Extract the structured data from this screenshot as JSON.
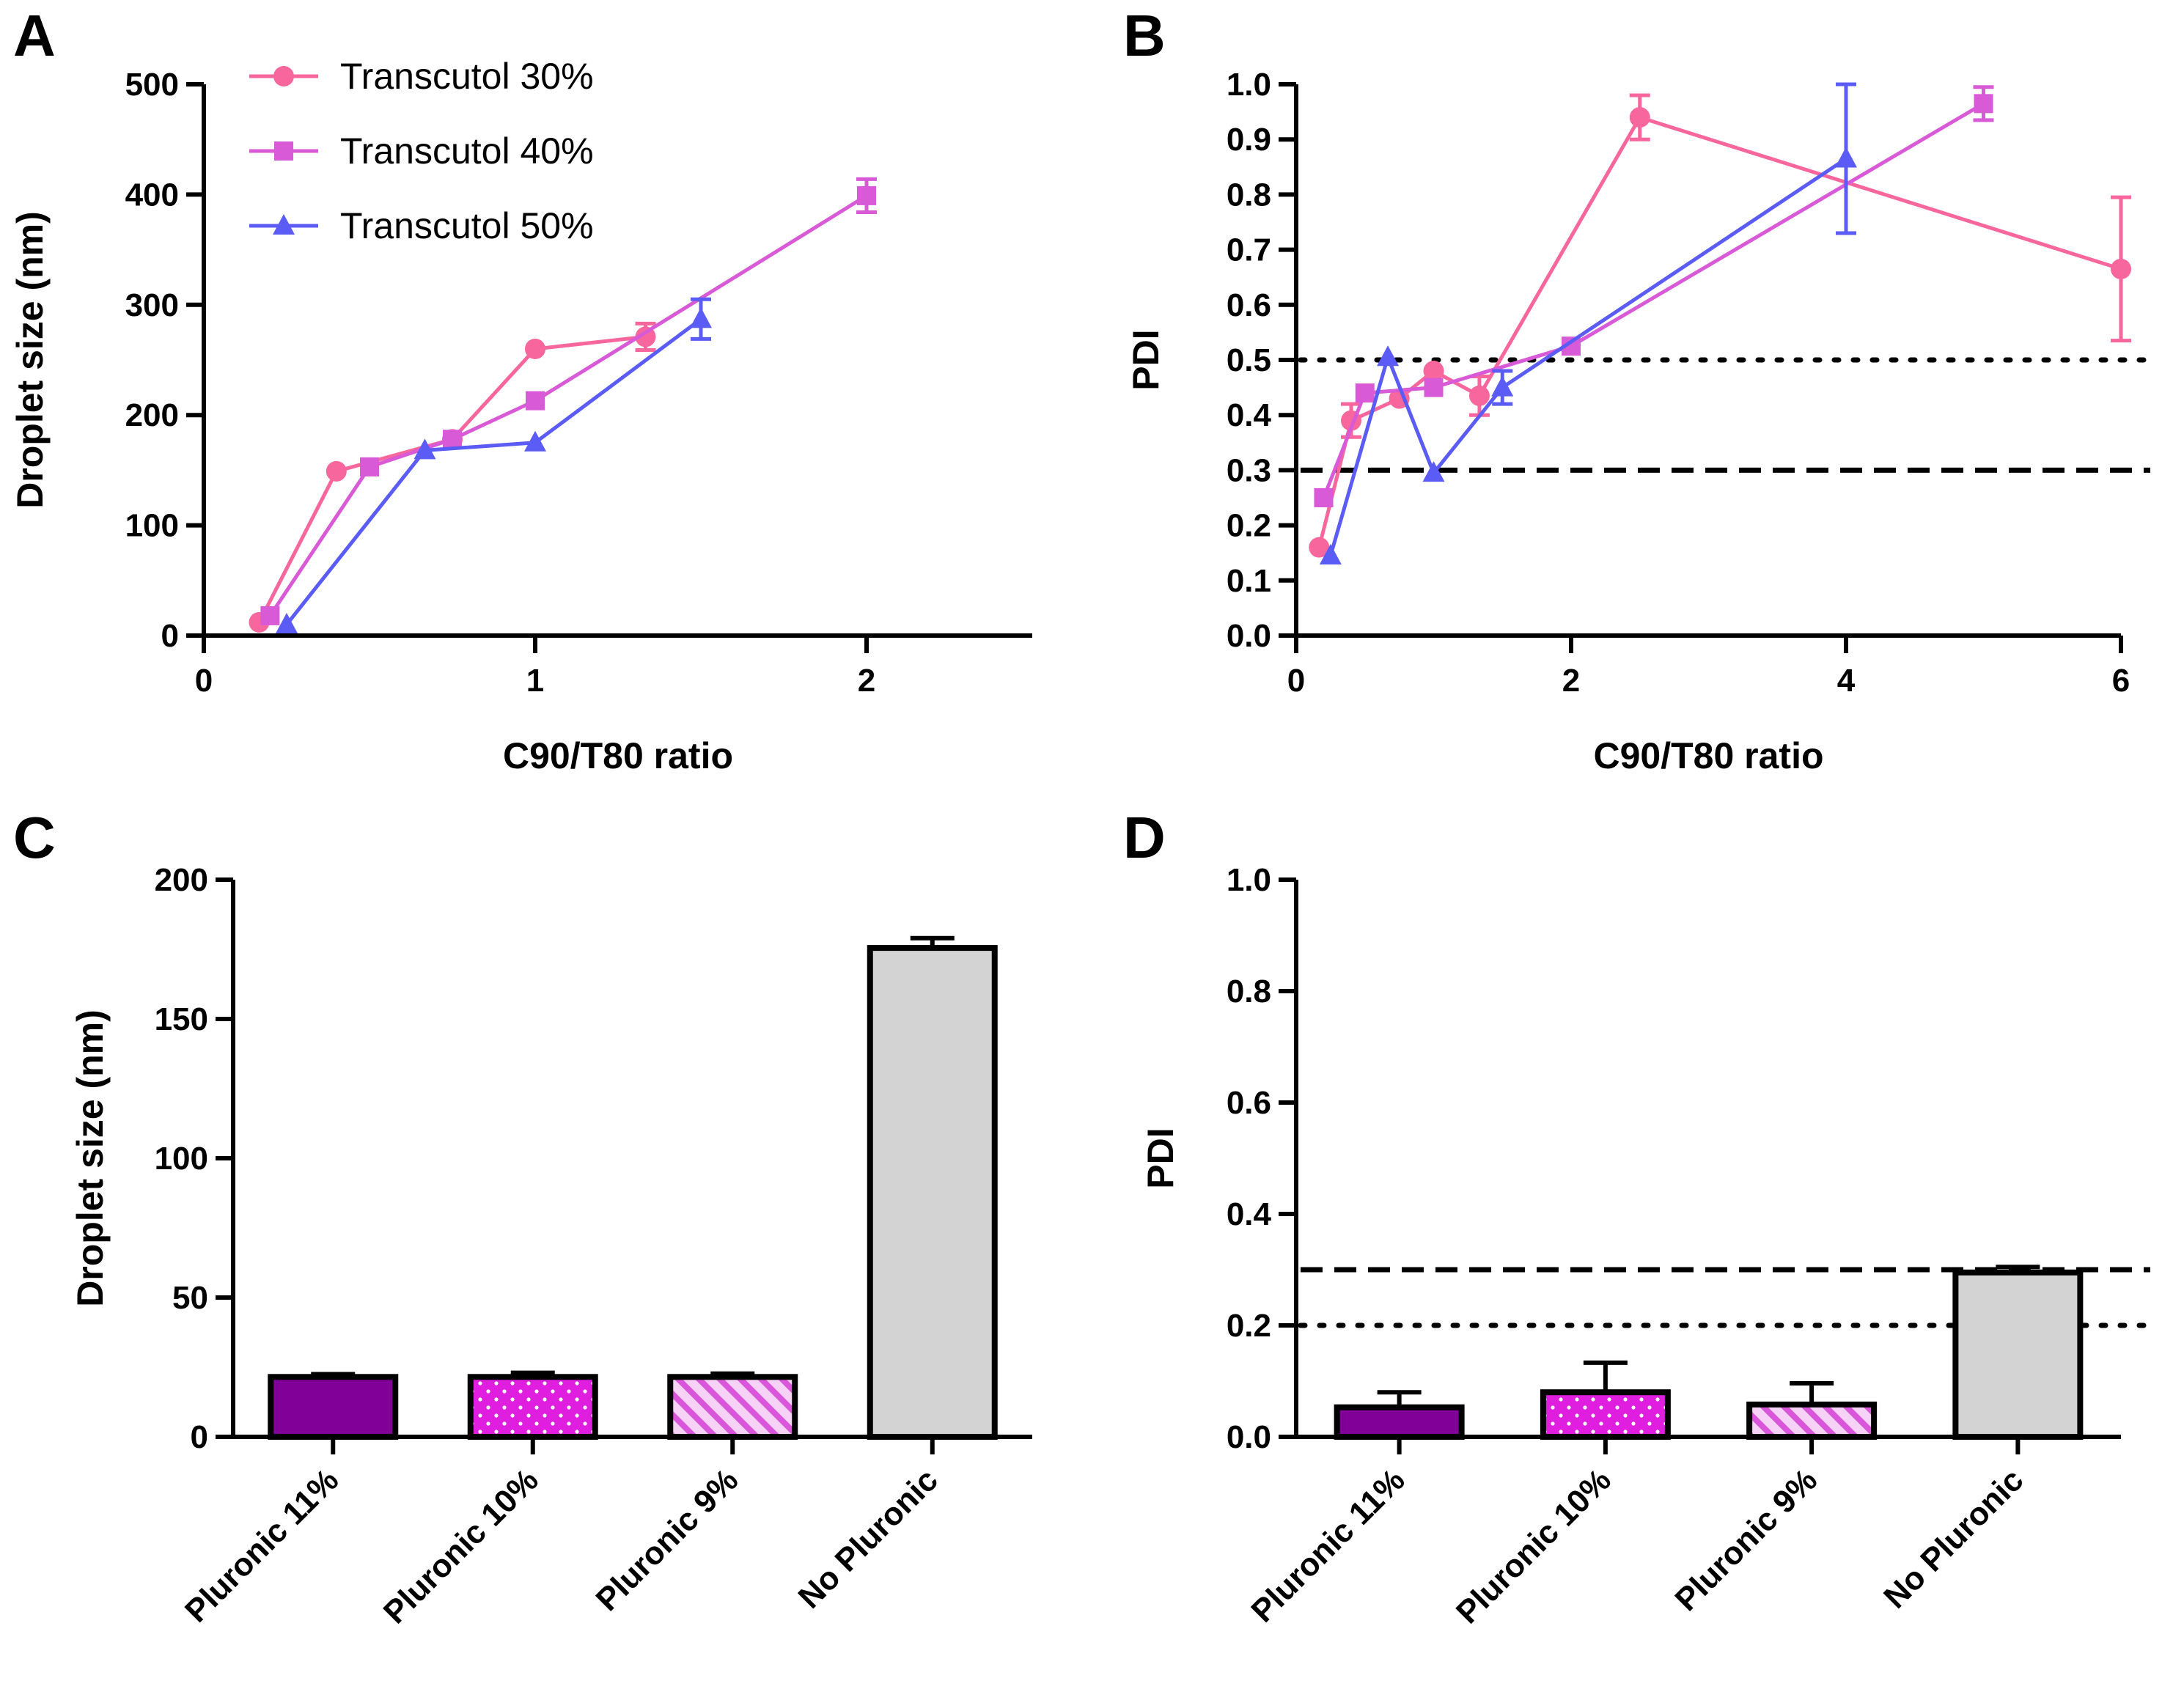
{
  "colors": {
    "t30": "#f7669c",
    "t40": "#d95ad6",
    "t50": "#5b5bf5",
    "p11": "#800098",
    "p10": "#e01ee0",
    "p9": "#e59ae5",
    "none": "#d3d3d3",
    "axis": "#000000"
  },
  "chart_data": [
    {
      "id": "A",
      "panel_label": "A",
      "type": "line",
      "xlabel": "C90/T80 ratio",
      "ylabel": "Droplet size (nm)",
      "xlim": [
        0,
        2.5
      ],
      "ylim": [
        0,
        500
      ],
      "xticks": [
        0,
        1,
        2
      ],
      "xtick_labels": [
        "0",
        "1",
        "2"
      ],
      "yticks": [
        0,
        100,
        200,
        300,
        400,
        500
      ],
      "ytick_labels": [
        "0",
        "100",
        "200",
        "300",
        "400",
        "500"
      ],
      "legend": {
        "placement": "top-left"
      },
      "series": [
        {
          "name": "Transcutol 30%",
          "color_key": "t30",
          "marker": "circle",
          "x": [
            0.167,
            0.4,
            0.75,
            1.0,
            1.333
          ],
          "y": [
            12,
            149,
            178,
            260,
            271
          ],
          "err": [
            0,
            0,
            0,
            0,
            12
          ]
        },
        {
          "name": "Transcutol 40%",
          "color_key": "t40",
          "marker": "square",
          "x": [
            0.2,
            0.5,
            0.75,
            1.0,
            2.0
          ],
          "y": [
            18,
            153,
            178,
            213,
            399
          ],
          "err": [
            0,
            0,
            0,
            0,
            15
          ]
        },
        {
          "name": "Transcutol 50%",
          "color_key": "t50",
          "marker": "triangle",
          "x": [
            0.25,
            0.667,
            1.0,
            1.5
          ],
          "y": [
            10,
            168,
            175,
            287
          ],
          "err": [
            0,
            0,
            0,
            18
          ]
        }
      ]
    },
    {
      "id": "B",
      "panel_label": "B",
      "type": "line",
      "xlabel": "C90/T80 ratio",
      "ylabel": "PDI",
      "xlim": [
        0,
        6
      ],
      "ylim": [
        0,
        1.0
      ],
      "xticks": [
        0,
        2,
        4,
        6
      ],
      "xtick_labels": [
        "0",
        "2",
        "4",
        "6"
      ],
      "yticks": [
        0,
        0.1,
        0.2,
        0.3,
        0.4,
        0.5,
        0.6,
        0.7,
        0.8,
        0.9,
        1.0
      ],
      "ytick_labels": [
        "0.0",
        "0.1",
        "0.2",
        "0.3",
        "0.4",
        "0.5",
        "0.6",
        "0.7",
        "0.8",
        "0.9",
        "1.0"
      ],
      "reference_lines": [
        {
          "y": 0.5,
          "style": "dotted"
        },
        {
          "y": 0.3,
          "style": "dashed"
        }
      ],
      "series": [
        {
          "name": "Transcutol 30%",
          "color_key": "t30",
          "marker": "circle",
          "x": [
            0.167,
            0.4,
            0.75,
            1.0,
            1.333,
            2.5,
            6.0
          ],
          "y": [
            0.16,
            0.39,
            0.43,
            0.48,
            0.435,
            0.94,
            0.665
          ],
          "err": [
            0,
            0.03,
            0,
            0,
            0.035,
            0.04,
            0.13
          ]
        },
        {
          "name": "Transcutol 40%",
          "color_key": "t40",
          "marker": "square",
          "x": [
            0.2,
            0.5,
            1.0,
            2.0,
            5.0
          ],
          "y": [
            0.25,
            0.44,
            0.45,
            0.525,
            0.965
          ],
          "err": [
            0,
            0,
            0,
            0,
            0.03
          ]
        },
        {
          "name": "Transcutol 50%",
          "color_key": "t50",
          "marker": "triangle",
          "x": [
            0.25,
            0.667,
            1.0,
            1.5,
            4.0
          ],
          "y": [
            0.145,
            0.505,
            0.295,
            0.45,
            0.865
          ],
          "err": [
            0,
            0,
            0,
            0.03,
            0.135
          ]
        }
      ]
    },
    {
      "id": "C",
      "panel_label": "C",
      "type": "bar",
      "ylabel": "Droplet size (nm)",
      "ylim": [
        0,
        200
      ],
      "yticks": [
        0,
        50,
        100,
        150,
        200
      ],
      "ytick_labels": [
        "0",
        "50",
        "100",
        "150",
        "200"
      ],
      "categories": [
        "Pluronic 11%",
        "Pluronic 10%",
        "Pluronic 9%",
        "No Pluronic"
      ],
      "values": [
        21.5,
        21.5,
        21.5,
        175.5
      ],
      "err": [
        1.0,
        1.5,
        1.2,
        3.5
      ],
      "color_keys": [
        "p11",
        "p10",
        "p9",
        "none"
      ],
      "patterns": [
        "solid",
        "dots",
        "hatch",
        "solid"
      ]
    },
    {
      "id": "D",
      "panel_label": "D",
      "type": "bar",
      "ylabel": "PDI",
      "ylim": [
        0,
        1.0
      ],
      "yticks": [
        0,
        0.2,
        0.4,
        0.6,
        0.8,
        1.0
      ],
      "ytick_labels": [
        "0.0",
        "0.2",
        "0.4",
        "0.6",
        "0.8",
        "1.0"
      ],
      "reference_lines": [
        {
          "y": 0.3,
          "style": "dashed"
        },
        {
          "y": 0.2,
          "style": "dotted"
        }
      ],
      "categories": [
        "Pluronic 11%",
        "Pluronic 10%",
        "Pluronic 9%",
        "No Pluronic"
      ],
      "values": [
        0.053,
        0.08,
        0.058,
        0.295
      ],
      "err": [
        0.027,
        0.053,
        0.038,
        0.01
      ],
      "color_keys": [
        "p11",
        "p10",
        "p9",
        "none"
      ],
      "patterns": [
        "solid",
        "dots",
        "hatch",
        "solid"
      ]
    }
  ]
}
